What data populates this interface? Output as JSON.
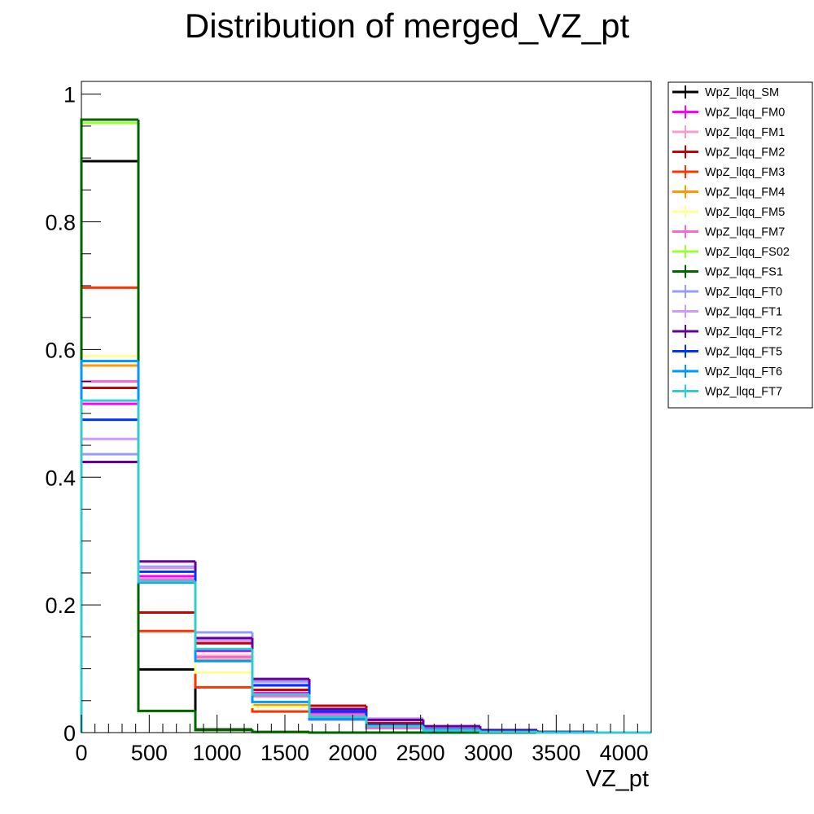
{
  "chart_data": {
    "type": "histogram",
    "title": "Distribution of merged_VZ_pt",
    "xlabel": "VZ_pt",
    "ylabel": "",
    "xlim": [
      0,
      4200
    ],
    "ylim": [
      0,
      1.02
    ],
    "x_ticks": [
      0,
      500,
      1000,
      1500,
      2000,
      2500,
      3000,
      3500,
      4000
    ],
    "x_tick_labels": [
      "0",
      "500",
      "1000",
      "1500",
      "2000",
      "2500",
      "3000",
      "3500",
      "4000"
    ],
    "y_ticks": [
      0,
      0.2,
      0.4,
      0.6,
      0.8,
      1
    ],
    "y_tick_labels": [
      "0",
      "0.2",
      "0.4",
      "0.6",
      "0.8",
      "1"
    ],
    "bin_edges": [
      0,
      420,
      840,
      1260,
      1680,
      2100,
      2520,
      2940,
      3360,
      3780,
      4200
    ],
    "legend_position": "right",
    "series": [
      {
        "name": "WpZ_llqq_SM",
        "color": "#000000",
        "values": [
          0.895,
          0.099,
          0.005,
          0.001,
          0.0,
          0.0,
          0.0,
          0.0,
          0.0,
          0.0
        ]
      },
      {
        "name": "WpZ_llqq_FM0",
        "color": "#ff00ff",
        "values": [
          0.515,
          0.245,
          0.128,
          0.062,
          0.03,
          0.012,
          0.005,
          0.002,
          0.001,
          0.0
        ]
      },
      {
        "name": "WpZ_llqq_FM1",
        "color": "#ff99cc",
        "values": [
          0.55,
          0.238,
          0.12,
          0.058,
          0.02,
          0.009,
          0.003,
          0.001,
          0.0,
          0.0
        ]
      },
      {
        "name": "WpZ_llqq_FM2",
        "color": "#cc0000",
        "values": [
          0.54,
          0.188,
          0.14,
          0.067,
          0.042,
          0.015,
          0.005,
          0.002,
          0.001,
          0.0
        ]
      },
      {
        "name": "WpZ_llqq_FM3",
        "color": "#ff3300",
        "values": [
          0.697,
          0.159,
          0.071,
          0.033,
          0.025,
          0.01,
          0.003,
          0.001,
          0.0,
          0.0
        ]
      },
      {
        "name": "WpZ_llqq_FM4",
        "color": "#ff9900",
        "values": [
          0.575,
          0.238,
          0.113,
          0.043,
          0.022,
          0.007,
          0.001,
          0.0,
          0.0,
          0.0
        ]
      },
      {
        "name": "WpZ_llqq_FM5",
        "color": "#ffff99",
        "values": [
          0.59,
          0.236,
          0.094,
          0.04,
          0.028,
          0.008,
          0.003,
          0.001,
          0.0,
          0.0
        ]
      },
      {
        "name": "WpZ_llqq_FM7",
        "color": "#ff66cc",
        "values": [
          0.55,
          0.24,
          0.118,
          0.057,
          0.028,
          0.007,
          0.003,
          0.001,
          0.0,
          0.0
        ]
      },
      {
        "name": "WpZ_llqq_FS02",
        "color": "#99ff33",
        "values": [
          0.955,
          0.034,
          0.004,
          0.001,
          0.0,
          0.0,
          0.0,
          0.0,
          0.0,
          0.0
        ]
      },
      {
        "name": "WpZ_llqq_FS1",
        "color": "#006600",
        "values": [
          0.96,
          0.034,
          0.004,
          0.001,
          0.0,
          0.0,
          0.0,
          0.0,
          0.0,
          0.0
        ]
      },
      {
        "name": "WpZ_llqq_FT0",
        "color": "#9999ff",
        "values": [
          0.436,
          0.26,
          0.157,
          0.08,
          0.035,
          0.02,
          0.007,
          0.003,
          0.001,
          0.0
        ]
      },
      {
        "name": "WpZ_llqq_FT1",
        "color": "#cc99ff",
        "values": [
          0.46,
          0.258,
          0.144,
          0.075,
          0.036,
          0.022,
          0.008,
          0.003,
          0.001,
          0.0
        ]
      },
      {
        "name": "WpZ_llqq_FT2",
        "color": "#660099",
        "values": [
          0.424,
          0.268,
          0.148,
          0.084,
          0.037,
          0.02,
          0.01,
          0.004,
          0.001,
          0.0
        ]
      },
      {
        "name": "WpZ_llqq_FT5",
        "color": "#0033ff",
        "values": [
          0.49,
          0.252,
          0.13,
          0.074,
          0.033,
          0.012,
          0.005,
          0.002,
          0.001,
          0.0
        ]
      },
      {
        "name": "WpZ_llqq_FT6",
        "color": "#0099ff",
        "values": [
          0.582,
          0.235,
          0.112,
          0.048,
          0.021,
          0.01,
          0.003,
          0.001,
          0.0,
          0.0
        ]
      },
      {
        "name": "WpZ_llqq_FT7",
        "color": "#33cccc",
        "values": [
          0.52,
          0.237,
          0.131,
          0.06,
          0.025,
          0.01,
          0.004,
          0.001,
          0.0,
          0.0
        ]
      }
    ]
  }
}
